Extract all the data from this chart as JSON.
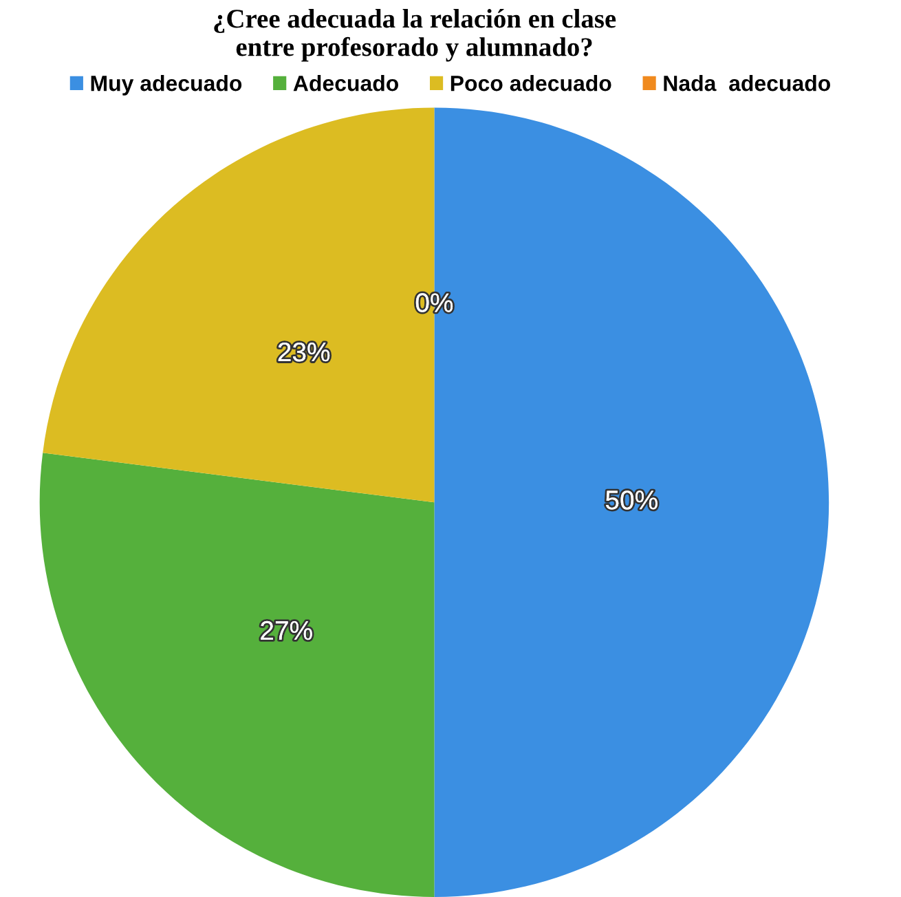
{
  "chart_data": {
    "type": "pie",
    "title": "¿Cree adecuada la relación en clase\nentre profesorado y alumnado?",
    "categories": [
      "Muy adecuado",
      "Adecuado",
      "Poco adecuado",
      "Nada  adecuado"
    ],
    "values": [
      50,
      27,
      23,
      0
    ],
    "value_labels": [
      "50%",
      "27%",
      "23%",
      "0%"
    ],
    "colors": [
      "#3b8fe2",
      "#55b03c",
      "#dcbc22",
      "#f08a1e"
    ],
    "legend": "top"
  }
}
